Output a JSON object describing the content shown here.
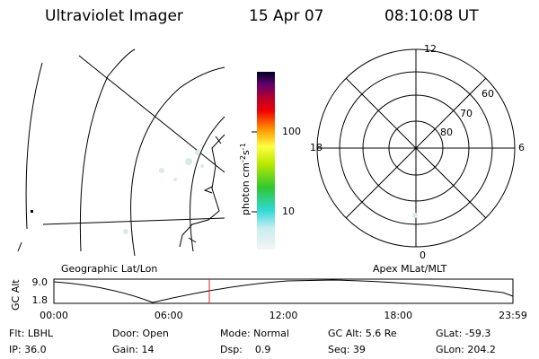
{
  "header": {
    "title": "Ultraviolet Imager",
    "date": "15 Apr 07",
    "time": "08:10:08 UT"
  },
  "colorbar": {
    "label": "photon cm",
    "exp1": "-2",
    "mid": "s",
    "exp2": "-1",
    "ticks": [
      "100",
      "10"
    ]
  },
  "polar": {
    "mlt_labels": [
      "12",
      "18",
      "6",
      "0"
    ],
    "lat_labels": [
      "60",
      "70",
      "80"
    ]
  },
  "map_labels": {
    "left": "Geographic Lat/Lon",
    "right": "Apex MLat/MLT"
  },
  "altitude": {
    "axis_label": "GC Alt",
    "yticks": [
      "9.0",
      "1.8"
    ],
    "xticks": [
      "00:00",
      "06:00",
      "12:00",
      "18:00",
      "23:59"
    ]
  },
  "info": [
    [
      "Flt: LBHL",
      "Door: Open",
      "Mode: Normal",
      "GC Alt: 5.6 Re",
      "GLat: -59.3"
    ],
    [
      "IP: 36.0",
      "Gain: 14",
      "Dsp:    0.9",
      "Seq: 39",
      "GLon: 204.2"
    ]
  ]
}
